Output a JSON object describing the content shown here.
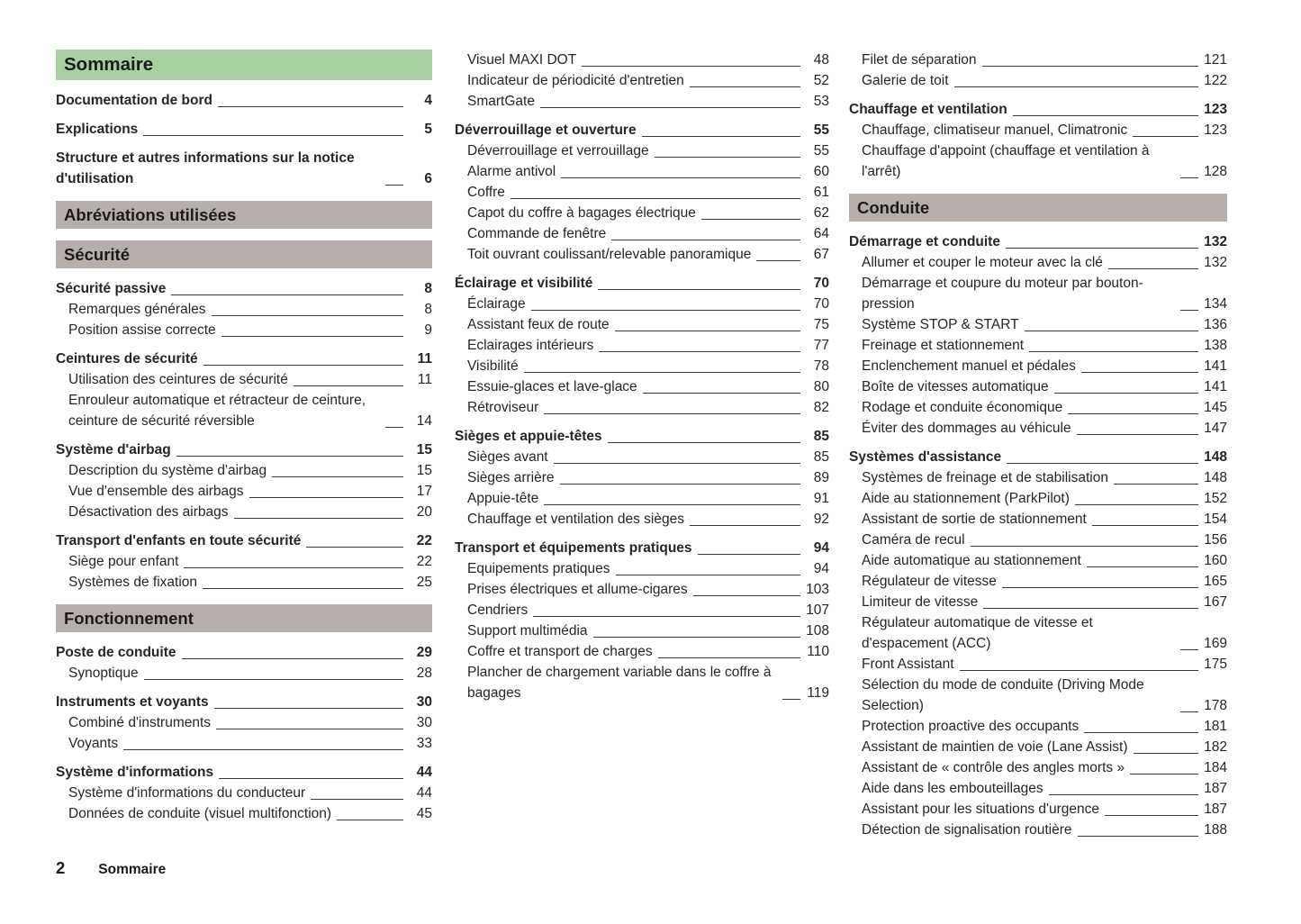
{
  "footer": {
    "page_number": "2",
    "label": "Sommaire"
  },
  "colors": {
    "banner_green": "#a9d0a3",
    "banner_gray": "#b5aeab",
    "text": "#26262a",
    "leader": "#3a3a3e"
  },
  "columns": [
    {
      "name": "column-1",
      "blocks": [
        {
          "type": "banner",
          "style": "green",
          "text": "Sommaire"
        },
        {
          "type": "entry",
          "bold": true,
          "indent": false,
          "gap": false,
          "label": "Documentation de bord",
          "page": "4"
        },
        {
          "type": "entry",
          "bold": true,
          "indent": false,
          "gap": true,
          "label": "Explications",
          "page": "5"
        },
        {
          "type": "entry",
          "bold": true,
          "indent": false,
          "gap": true,
          "label": "Structure et autres informations sur la notice d'utilisation",
          "page": "6"
        },
        {
          "type": "banner",
          "style": "gray",
          "text": "Abréviations utilisées"
        },
        {
          "type": "banner",
          "style": "gray",
          "text": "Sécurité"
        },
        {
          "type": "entry",
          "bold": true,
          "indent": false,
          "gap": false,
          "label": "Sécurité passive",
          "page": "8"
        },
        {
          "type": "entry",
          "bold": false,
          "indent": true,
          "gap": false,
          "label": "Remarques générales",
          "page": "8"
        },
        {
          "type": "entry",
          "bold": false,
          "indent": true,
          "gap": false,
          "label": "Position assise correcte",
          "page": "9"
        },
        {
          "type": "entry",
          "bold": true,
          "indent": false,
          "gap": true,
          "label": "Ceintures de sécurité",
          "page": "11"
        },
        {
          "type": "entry",
          "bold": false,
          "indent": true,
          "gap": false,
          "label": "Utilisation des ceintures de sécurité",
          "page": "11"
        },
        {
          "type": "entry",
          "bold": false,
          "indent": true,
          "gap": false,
          "label": "Enrouleur automatique et rétracteur de ceinture, ceinture de sécurité réversible",
          "page": "14"
        },
        {
          "type": "entry",
          "bold": true,
          "indent": false,
          "gap": true,
          "label": "Système d'airbag",
          "page": "15"
        },
        {
          "type": "entry",
          "bold": false,
          "indent": true,
          "gap": false,
          "label": "Description du système d'airbag",
          "page": "15"
        },
        {
          "type": "entry",
          "bold": false,
          "indent": true,
          "gap": false,
          "label": "Vue d'ensemble des airbags",
          "page": "17"
        },
        {
          "type": "entry",
          "bold": false,
          "indent": true,
          "gap": false,
          "label": "Désactivation des airbags",
          "page": "20"
        },
        {
          "type": "entry",
          "bold": true,
          "indent": false,
          "gap": true,
          "label": "Transport d'enfants en toute sécurité",
          "page": "22"
        },
        {
          "type": "entry",
          "bold": false,
          "indent": true,
          "gap": false,
          "label": "Siège pour enfant",
          "page": "22"
        },
        {
          "type": "entry",
          "bold": false,
          "indent": true,
          "gap": false,
          "label": "Systèmes de fixation",
          "page": "25"
        },
        {
          "type": "banner",
          "style": "gray",
          "text": "Fonctionnement"
        },
        {
          "type": "entry",
          "bold": true,
          "indent": false,
          "gap": false,
          "label": "Poste de conduite",
          "page": "29"
        },
        {
          "type": "entry",
          "bold": false,
          "indent": true,
          "gap": false,
          "label": "Synoptique",
          "page": "28"
        },
        {
          "type": "entry",
          "bold": true,
          "indent": false,
          "gap": true,
          "label": "Instruments et voyants",
          "page": "30"
        },
        {
          "type": "entry",
          "bold": false,
          "indent": true,
          "gap": false,
          "label": "Combiné d'instruments",
          "page": "30"
        },
        {
          "type": "entry",
          "bold": false,
          "indent": true,
          "gap": false,
          "label": "Voyants",
          "page": "33"
        },
        {
          "type": "entry",
          "bold": true,
          "indent": false,
          "gap": true,
          "label": "Système d'informations",
          "page": "44"
        },
        {
          "type": "entry",
          "bold": false,
          "indent": true,
          "gap": false,
          "label": "Système d'informations du conducteur",
          "page": "44"
        },
        {
          "type": "entry",
          "bold": false,
          "indent": true,
          "gap": false,
          "label": "Données de conduite (visuel multifonction)",
          "page": "45"
        }
      ]
    },
    {
      "name": "column-2",
      "blocks": [
        {
          "type": "entry",
          "bold": false,
          "indent": true,
          "gap": false,
          "label": "Visuel MAXI DOT",
          "page": "48"
        },
        {
          "type": "entry",
          "bold": false,
          "indent": true,
          "gap": false,
          "label": "Indicateur de périodicité d'entretien",
          "page": "52"
        },
        {
          "type": "entry",
          "bold": false,
          "indent": true,
          "gap": false,
          "label": "SmartGate",
          "page": "53"
        },
        {
          "type": "entry",
          "bold": true,
          "indent": false,
          "gap": true,
          "label": "Déverrouillage et ouverture",
          "page": "55"
        },
        {
          "type": "entry",
          "bold": false,
          "indent": true,
          "gap": false,
          "label": "Déverrouillage et verrouillage",
          "page": "55"
        },
        {
          "type": "entry",
          "bold": false,
          "indent": true,
          "gap": false,
          "label": "Alarme antivol",
          "page": "60"
        },
        {
          "type": "entry",
          "bold": false,
          "indent": true,
          "gap": false,
          "label": "Coffre",
          "page": "61"
        },
        {
          "type": "entry",
          "bold": false,
          "indent": true,
          "gap": false,
          "label": "Capot du coffre à bagages électrique",
          "page": "62"
        },
        {
          "type": "entry",
          "bold": false,
          "indent": true,
          "gap": false,
          "label": "Commande de fenêtre",
          "page": "64"
        },
        {
          "type": "entry",
          "bold": false,
          "indent": true,
          "gap": false,
          "label": "Toit ouvrant coulissant/relevable panoramique",
          "page": "67"
        },
        {
          "type": "entry",
          "bold": true,
          "indent": false,
          "gap": true,
          "label": "Éclairage et visibilité",
          "page": "70"
        },
        {
          "type": "entry",
          "bold": false,
          "indent": true,
          "gap": false,
          "label": "Éclairage",
          "page": "70"
        },
        {
          "type": "entry",
          "bold": false,
          "indent": true,
          "gap": false,
          "label": "Assistant feux de route",
          "page": "75"
        },
        {
          "type": "entry",
          "bold": false,
          "indent": true,
          "gap": false,
          "label": "Eclairages intérieurs",
          "page": "77"
        },
        {
          "type": "entry",
          "bold": false,
          "indent": true,
          "gap": false,
          "label": "Visibilité",
          "page": "78"
        },
        {
          "type": "entry",
          "bold": false,
          "indent": true,
          "gap": false,
          "label": "Essuie-glaces et lave-glace",
          "page": "80"
        },
        {
          "type": "entry",
          "bold": false,
          "indent": true,
          "gap": false,
          "label": "Rétroviseur",
          "page": "82"
        },
        {
          "type": "entry",
          "bold": true,
          "indent": false,
          "gap": true,
          "label": "Sièges et appuie-têtes",
          "page": "85"
        },
        {
          "type": "entry",
          "bold": false,
          "indent": true,
          "gap": false,
          "label": "Sièges avant",
          "page": "85"
        },
        {
          "type": "entry",
          "bold": false,
          "indent": true,
          "gap": false,
          "label": "Sièges arrière",
          "page": "89"
        },
        {
          "type": "entry",
          "bold": false,
          "indent": true,
          "gap": false,
          "label": "Appuie-tête",
          "page": "91"
        },
        {
          "type": "entry",
          "bold": false,
          "indent": true,
          "gap": false,
          "label": "Chauffage et ventilation des sièges",
          "page": "92"
        },
        {
          "type": "entry",
          "bold": true,
          "indent": false,
          "gap": true,
          "label": "Transport et équipements pratiques",
          "page": "94"
        },
        {
          "type": "entry",
          "bold": false,
          "indent": true,
          "gap": false,
          "label": "Equipements pratiques",
          "page": "94"
        },
        {
          "type": "entry",
          "bold": false,
          "indent": true,
          "gap": false,
          "label": "Prises électriques et allume-cigares",
          "page": "103"
        },
        {
          "type": "entry",
          "bold": false,
          "indent": true,
          "gap": false,
          "label": "Cendriers",
          "page": "107"
        },
        {
          "type": "entry",
          "bold": false,
          "indent": true,
          "gap": false,
          "label": "Support multimédia",
          "page": "108"
        },
        {
          "type": "entry",
          "bold": false,
          "indent": true,
          "gap": false,
          "label": "Coffre et transport de charges",
          "page": "110"
        },
        {
          "type": "entry",
          "bold": false,
          "indent": true,
          "gap": false,
          "label": "Plancher de chargement variable dans le coffre à bagages",
          "page": "119"
        }
      ]
    },
    {
      "name": "column-3",
      "blocks": [
        {
          "type": "entry",
          "bold": false,
          "indent": true,
          "gap": false,
          "label": "Filet de séparation",
          "page": "121"
        },
        {
          "type": "entry",
          "bold": false,
          "indent": true,
          "gap": false,
          "label": "Galerie de toit",
          "page": "122"
        },
        {
          "type": "entry",
          "bold": true,
          "indent": false,
          "gap": true,
          "label": "Chauffage et ventilation",
          "page": "123"
        },
        {
          "type": "entry",
          "bold": false,
          "indent": true,
          "gap": false,
          "label": "Chauffage, climatiseur manuel, Climatronic",
          "page": "123"
        },
        {
          "type": "entry",
          "bold": false,
          "indent": true,
          "gap": false,
          "label": "Chauffage d'appoint (chauffage et ventilation à l'arrêt)",
          "page": "128"
        },
        {
          "type": "banner",
          "style": "gray",
          "text": "Conduite"
        },
        {
          "type": "entry",
          "bold": true,
          "indent": false,
          "gap": false,
          "label": "Démarrage et conduite",
          "page": "132"
        },
        {
          "type": "entry",
          "bold": false,
          "indent": true,
          "gap": false,
          "label": "Allumer et couper le moteur avec la clé",
          "page": "132"
        },
        {
          "type": "entry",
          "bold": false,
          "indent": true,
          "gap": false,
          "label": "Démarrage et coupure du moteur par bouton-pression",
          "page": "134"
        },
        {
          "type": "entry",
          "bold": false,
          "indent": true,
          "gap": false,
          "label": "Système STOP & START",
          "page": "136"
        },
        {
          "type": "entry",
          "bold": false,
          "indent": true,
          "gap": false,
          "label": "Freinage et stationnement",
          "page": "138"
        },
        {
          "type": "entry",
          "bold": false,
          "indent": true,
          "gap": false,
          "label": "Enclenchement manuel et pédales",
          "page": "141"
        },
        {
          "type": "entry",
          "bold": false,
          "indent": true,
          "gap": false,
          "label": "Boîte de vitesses automatique",
          "page": "141"
        },
        {
          "type": "entry",
          "bold": false,
          "indent": true,
          "gap": false,
          "label": "Rodage et conduite économique",
          "page": "145"
        },
        {
          "type": "entry",
          "bold": false,
          "indent": true,
          "gap": false,
          "label": "Éviter des dommages au véhicule",
          "page": "147"
        },
        {
          "type": "entry",
          "bold": true,
          "indent": false,
          "gap": true,
          "label": "Systèmes d'assistance",
          "page": "148"
        },
        {
          "type": "entry",
          "bold": false,
          "indent": true,
          "gap": false,
          "label": "Systèmes de freinage et de stabilisation",
          "page": "148"
        },
        {
          "type": "entry",
          "bold": false,
          "indent": true,
          "gap": false,
          "label": "Aide au stationnement (ParkPilot)",
          "page": "152"
        },
        {
          "type": "entry",
          "bold": false,
          "indent": true,
          "gap": false,
          "label": "Assistant de sortie de stationnement",
          "page": "154"
        },
        {
          "type": "entry",
          "bold": false,
          "indent": true,
          "gap": false,
          "label": "Caméra de recul",
          "page": "156"
        },
        {
          "type": "entry",
          "bold": false,
          "indent": true,
          "gap": false,
          "label": "Aide automatique au stationnement",
          "page": "160"
        },
        {
          "type": "entry",
          "bold": false,
          "indent": true,
          "gap": false,
          "label": "Régulateur de vitesse",
          "page": "165"
        },
        {
          "type": "entry",
          "bold": false,
          "indent": true,
          "gap": false,
          "label": "Limiteur de vitesse",
          "page": "167"
        },
        {
          "type": "entry",
          "bold": false,
          "indent": true,
          "gap": false,
          "label": "Régulateur automatique de vitesse et d'espacement (ACC)",
          "page": "169"
        },
        {
          "type": "entry",
          "bold": false,
          "indent": true,
          "gap": false,
          "label": "Front Assistant",
          "page": "175"
        },
        {
          "type": "entry",
          "bold": false,
          "indent": true,
          "gap": false,
          "label": "Sélection du mode de conduite (Driving Mode Selection)",
          "page": "178"
        },
        {
          "type": "entry",
          "bold": false,
          "indent": true,
          "gap": false,
          "label": "Protection proactive des occupants",
          "page": "181"
        },
        {
          "type": "entry",
          "bold": false,
          "indent": true,
          "gap": false,
          "label": "Assistant de maintien de voie (Lane Assist)",
          "page": "182"
        },
        {
          "type": "entry",
          "bold": false,
          "indent": true,
          "gap": false,
          "label": "Assistant de « contrôle des angles morts »",
          "page": "184"
        },
        {
          "type": "entry",
          "bold": false,
          "indent": true,
          "gap": false,
          "label": "Aide dans les embouteillages",
          "page": "187"
        },
        {
          "type": "entry",
          "bold": false,
          "indent": true,
          "gap": false,
          "label": "Assistant pour les situations d'urgence",
          "page": "187"
        },
        {
          "type": "entry",
          "bold": false,
          "indent": true,
          "gap": false,
          "label": "Détection de signalisation routière",
          "page": "188"
        }
      ]
    }
  ]
}
